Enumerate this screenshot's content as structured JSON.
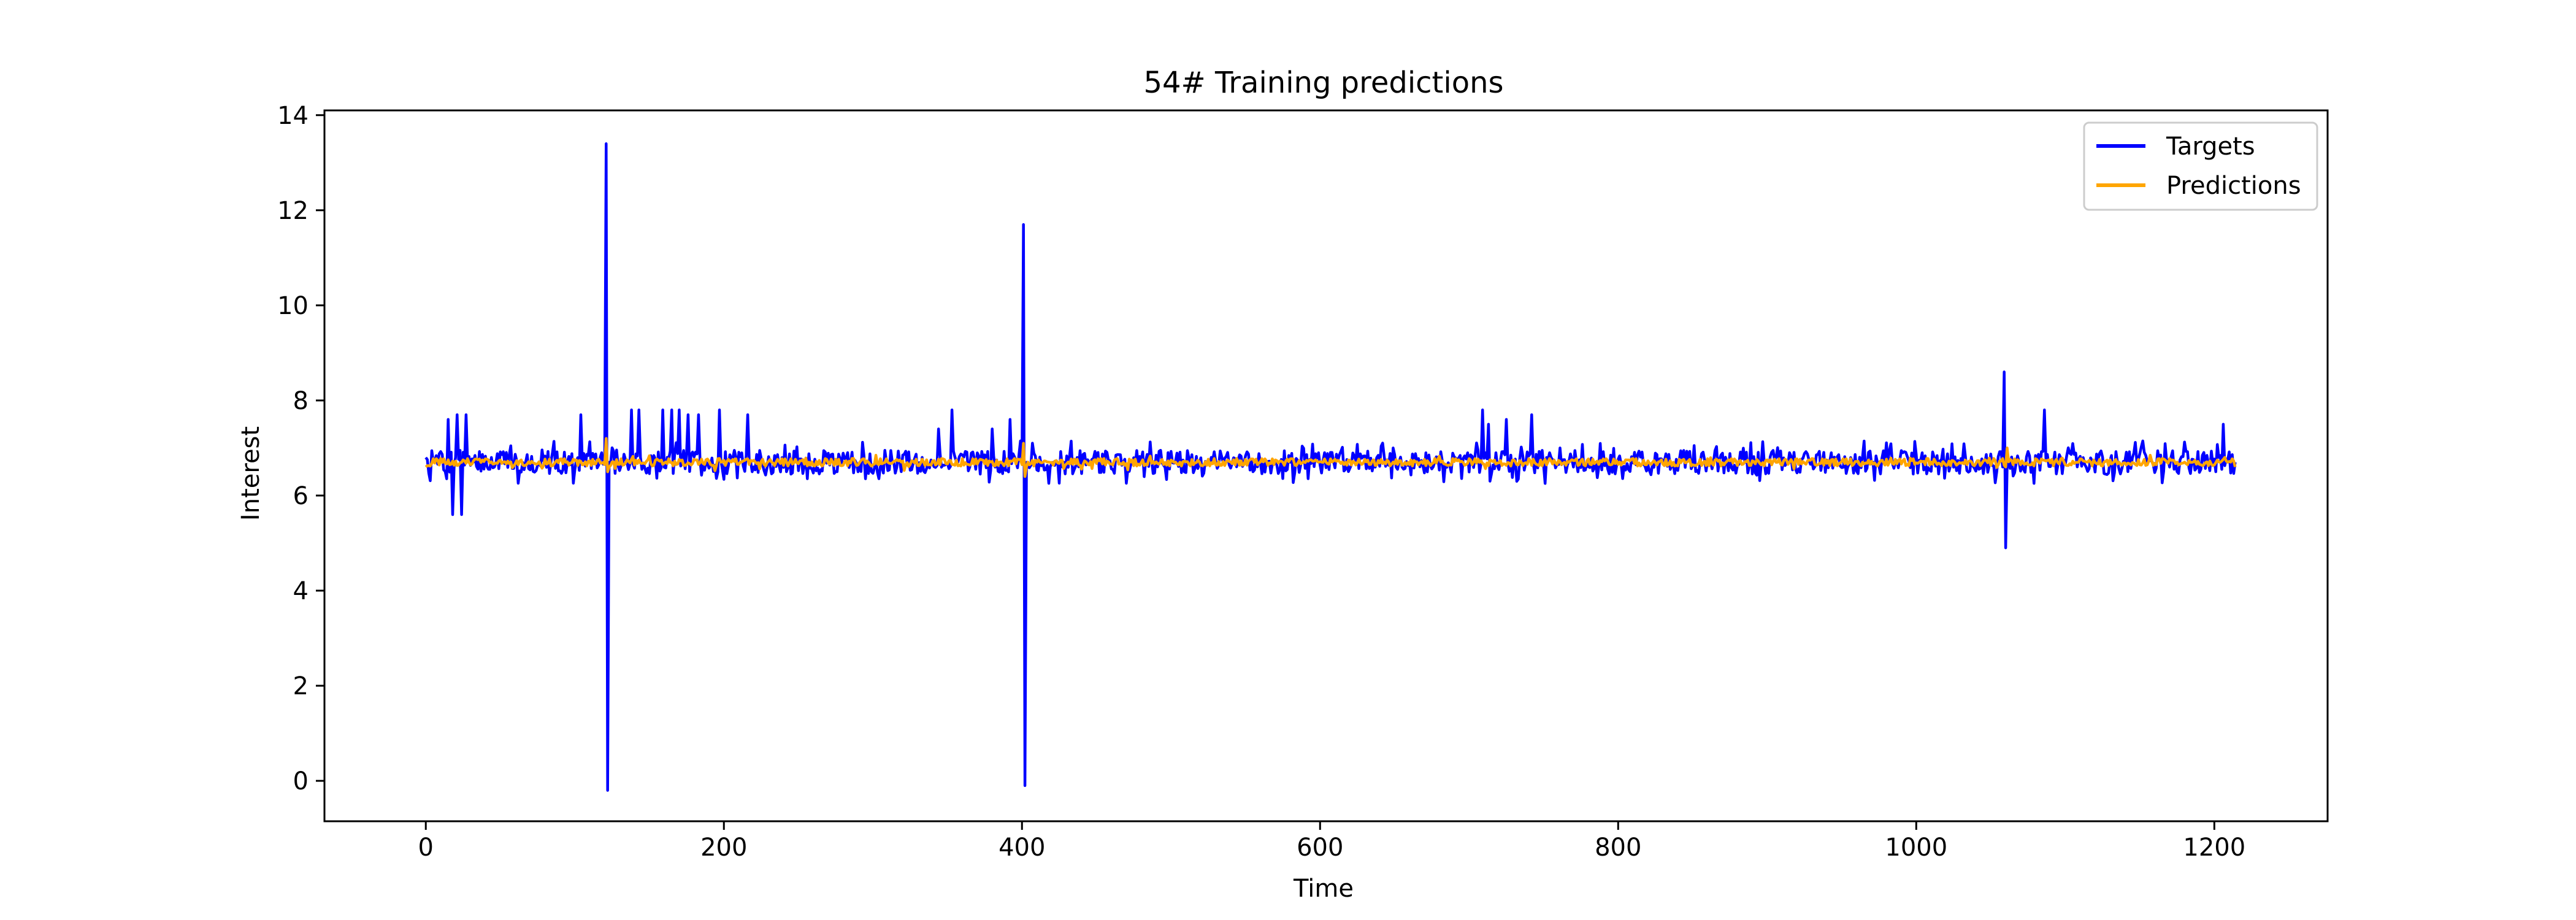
{
  "chart_data": {
    "type": "line",
    "title": "54# Training predictions",
    "xlabel": "Time",
    "ylabel": "Interest",
    "xlim": [
      -68,
      1276
    ],
    "ylim": [
      -0.85,
      14.1
    ],
    "x_ticks": [
      0,
      200,
      400,
      600,
      800,
      1000,
      1200
    ],
    "y_ticks": [
      0,
      2,
      4,
      6,
      8,
      10,
      12,
      14
    ],
    "grid": false,
    "legend_position": "top-right",
    "n_points": 1215,
    "baseline": 6.7,
    "series": [
      {
        "name": "Targets",
        "color": "#0000ff",
        "x": [
          0,
          15,
          18,
          21,
          24,
          27,
          104,
          120,
          121,
          122,
          123,
          138,
          143,
          159,
          165,
          170,
          176,
          183,
          197,
          216,
          344,
          353,
          357,
          380,
          392,
          400,
          401,
          402,
          403,
          404,
          709,
          713,
          725,
          742,
          1058,
          1059,
          1060,
          1061,
          1062,
          1086,
          1206,
          1214
        ],
        "values": [
          6.8,
          7.6,
          5.6,
          7.7,
          5.6,
          7.7,
          7.7,
          6.7,
          13.4,
          -0.2,
          6.7,
          7.8,
          7.8,
          7.8,
          7.8,
          7.8,
          7.7,
          7.7,
          7.8,
          7.7,
          7.4,
          7.8,
          6.7,
          7.4,
          7.6,
          6.7,
          11.7,
          -0.1,
          6.7,
          6.6,
          7.8,
          7.5,
          7.6,
          7.7,
          6.6,
          8.6,
          4.9,
          6.6,
          6.7,
          7.8,
          7.5,
          6.7
        ]
      },
      {
        "name": "Predictions",
        "color": "#ffa500",
        "x": [
          0,
          120,
          121,
          122,
          123,
          400,
          401,
          402,
          403,
          1060,
          1061,
          1214
        ],
        "values": [
          6.6,
          6.65,
          7.2,
          6.5,
          6.6,
          6.65,
          7.1,
          6.4,
          6.6,
          6.6,
          7.0,
          6.6
        ]
      }
    ]
  }
}
